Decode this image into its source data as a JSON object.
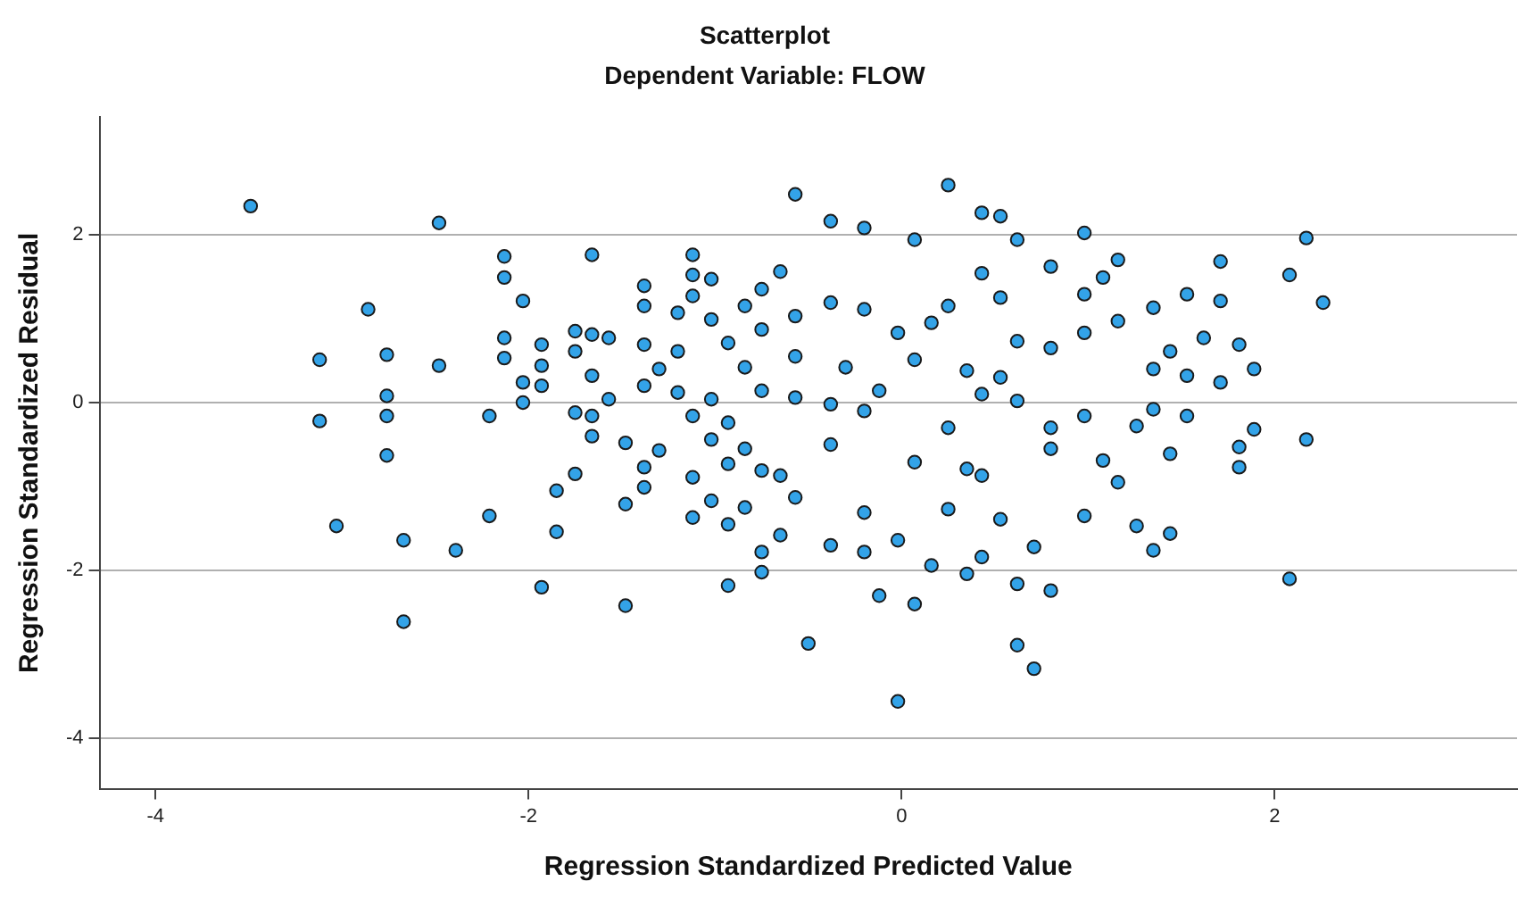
{
  "chart_data": {
    "type": "scatter",
    "title": "Scatterplot",
    "subtitle": "Dependent Variable: FLOW",
    "xlabel": "Regression Standardized Predicted Value",
    "ylabel": "Regression Standardized Residual",
    "xlim": [
      -4.3,
      3.3
    ],
    "ylim": [
      -4.6,
      3.4
    ],
    "xticks": [
      -4,
      -2,
      0,
      2
    ],
    "yticks": [
      -4,
      -2,
      0,
      2
    ],
    "grid": "y",
    "legend": false,
    "marker": "circle",
    "series": [
      {
        "color": "#33a3e8",
        "x": [
          -3.49,
          -2.48,
          -2.86,
          -3.12,
          -3.12,
          -2.76,
          -2.76,
          -2.76,
          -2.76,
          -2.48,
          -3.03,
          -2.67,
          -2.39,
          -2.67,
          -2.21,
          -2.21,
          -2.13,
          -2.13,
          -2.03,
          -2.13,
          -2.13,
          -2.03,
          -2.03,
          -1.93,
          -1.93,
          -1.93,
          -1.85,
          -1.85,
          -1.93,
          -1.75,
          -1.75,
          -1.75,
          -1.75,
          -1.66,
          -1.66,
          -1.66,
          -1.66,
          -1.66,
          -1.57,
          -1.57,
          -1.48,
          -1.48,
          -1.48,
          -1.38,
          -1.38,
          -1.38,
          -1.38,
          -1.38,
          -1.38,
          -1.3,
          -1.3,
          -1.2,
          -1.2,
          -1.2,
          -1.12,
          -1.12,
          -1.12,
          -1.12,
          -1.12,
          -1.12,
          -1.02,
          -1.02,
          -1.02,
          -1.02,
          -1.02,
          -0.93,
          -0.93,
          -0.93,
          -0.93,
          -0.93,
          -0.84,
          -0.84,
          -0.84,
          -0.84,
          -0.75,
          -0.75,
          -0.75,
          -0.75,
          -0.75,
          -0.75,
          -0.65,
          -0.65,
          -0.65,
          -0.57,
          -0.57,
          -0.57,
          -0.57,
          -0.5,
          -0.38,
          -0.38,
          -0.38,
          -0.38,
          -0.38,
          -0.2,
          -0.2,
          -0.2,
          -0.2,
          -0.2,
          -0.12,
          -0.02,
          -0.02,
          0.07,
          0.07,
          0.07,
          0.07,
          0.16,
          0.25,
          0.25,
          0.25,
          0.25,
          0.35,
          0.43,
          0.43,
          0.43,
          0.43,
          0.43,
          0.53,
          0.53,
          0.53,
          0.53,
          0.62,
          0.62,
          0.62,
          0.62,
          0.71,
          0.71,
          0.8,
          0.8,
          0.8,
          0.8,
          0.98,
          0.98,
          0.98,
          0.98,
          1.08,
          1.08,
          1.16,
          1.16,
          1.16,
          1.26,
          1.26,
          1.35,
          1.35,
          1.35,
          1.35,
          1.44,
          1.44,
          1.44,
          1.53,
          1.53,
          1.53,
          1.71,
          1.71,
          1.71,
          1.62,
          1.81,
          1.81,
          1.81,
          1.89,
          1.89,
          2.08,
          2.08,
          2.17,
          2.17,
          2.26,
          -0.12,
          0.16,
          0.35,
          0.62,
          0.8,
          -0.3,
          -0.57,
          -0.02,
          0.35,
          0.98
        ],
        "values": [
          2.34,
          2.14,
          1.11,
          0.51,
          -0.22,
          0.57,
          0.08,
          -0.16,
          -0.63,
          0.44,
          -1.47,
          -1.64,
          -1.76,
          -2.61,
          -0.16,
          -1.35,
          1.74,
          1.49,
          1.21,
          0.77,
          0.53,
          0.24,
          0.0,
          0.69,
          0.44,
          0.2,
          -1.05,
          -1.54,
          -2.2,
          -0.85,
          0.85,
          0.61,
          -0.12,
          1.76,
          0.81,
          0.32,
          -0.16,
          -0.4,
          0.77,
          0.04,
          -0.48,
          -1.21,
          -2.42,
          1.39,
          1.15,
          0.69,
          0.2,
          -0.77,
          -1.01,
          -0.57,
          0.4,
          1.07,
          0.61,
          0.12,
          1.76,
          1.52,
          1.27,
          -0.16,
          -0.89,
          -1.37,
          1.47,
          0.99,
          0.04,
          -0.44,
          -1.17,
          0.71,
          -0.24,
          -0.73,
          -1.45,
          -2.18,
          1.15,
          0.42,
          -0.55,
          -1.25,
          1.35,
          0.87,
          0.14,
          -0.81,
          -1.78,
          -2.02,
          1.56,
          -0.87,
          -1.58,
          2.48,
          1.03,
          0.06,
          -1.13,
          -2.87,
          2.16,
          1.19,
          -0.02,
          -0.5,
          -1.7,
          2.08,
          1.11,
          -0.1,
          -1.31,
          -1.78,
          -2.3,
          -3.56,
          -1.64,
          1.94,
          0.51,
          -0.71,
          -2.4,
          -1.94,
          2.59,
          1.15,
          -0.3,
          -1.27,
          -2.04,
          2.26,
          1.54,
          0.1,
          -0.87,
          -1.84,
          2.22,
          1.25,
          0.3,
          -1.39,
          1.94,
          0.73,
          -2.16,
          -2.89,
          -3.17,
          -1.72,
          1.62,
          0.65,
          -0.55,
          -2.24,
          2.02,
          1.29,
          -0.16,
          -1.35,
          1.49,
          -0.69,
          1.7,
          0.97,
          -0.95,
          -0.28,
          -1.47,
          1.13,
          0.4,
          -0.08,
          -1.76,
          0.61,
          -0.61,
          -1.56,
          1.29,
          0.32,
          -0.16,
          1.68,
          1.21,
          0.24,
          0.77,
          0.69,
          -0.53,
          -0.77,
          0.4,
          -0.32,
          1.52,
          -2.1,
          1.96,
          -0.44,
          1.19,
          0.14,
          0.95,
          0.38,
          0.02,
          -0.3,
          0.42,
          0.55,
          0.83,
          -0.79,
          0.83
        ]
      }
    ]
  }
}
